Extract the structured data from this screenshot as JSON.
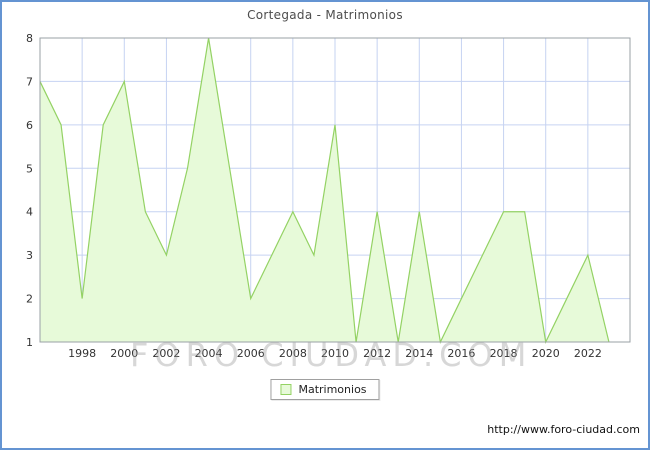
{
  "window": {
    "title": "Cortegada - Matrimonios"
  },
  "chart_data": {
    "type": "area",
    "title": "Cortegada - Matrimonios",
    "x": [
      1996,
      1997,
      1998,
      1999,
      2000,
      2001,
      2002,
      2003,
      2004,
      2005,
      2006,
      2007,
      2008,
      2009,
      2010,
      2011,
      2012,
      2013,
      2014,
      2015,
      2016,
      2017,
      2018,
      2019,
      2020,
      2021,
      2022,
      2023
    ],
    "values": [
      7,
      6,
      2,
      6,
      7,
      4,
      3,
      5,
      8,
      5,
      2,
      3,
      4,
      3,
      6,
      1,
      4,
      1,
      4,
      1,
      2,
      3,
      4,
      4,
      1,
      2,
      3,
      1
    ],
    "xlabel": "",
    "ylabel": "",
    "ylim": [
      1,
      8
    ],
    "xlim": [
      1996,
      2024
    ],
    "yticks": [
      1,
      2,
      3,
      4,
      5,
      6,
      7,
      8
    ],
    "xticks": [
      1998,
      2000,
      2002,
      2004,
      2006,
      2008,
      2010,
      2012,
      2014,
      2016,
      2018,
      2020,
      2022
    ],
    "grid": true,
    "legend": {
      "position": "bottom-center",
      "entries": [
        {
          "label": "Matrimonios",
          "fill": "#e7fad9",
          "stroke": "#94d264"
        }
      ]
    },
    "colors": {
      "area_fill": "#e7fad9",
      "line": "#94d264",
      "grid": "#c6d3f2",
      "plot_border": "#9aa0a6",
      "frame": "#6494d2",
      "title": "#4d4d4d",
      "tick": "#333333"
    }
  },
  "watermark": {
    "text": "FORO CIUDAD.COM"
  },
  "footer": {
    "url": "http://www.foro-ciudad.com"
  }
}
